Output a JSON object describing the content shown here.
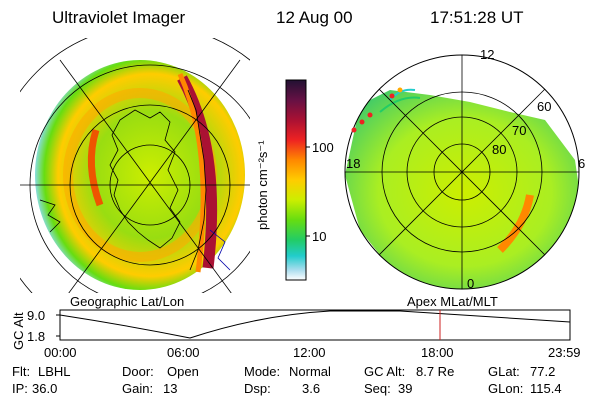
{
  "header": {
    "instrument": "Ultraviolet Imager",
    "date": "12 Aug 00",
    "time": "17:51:28 UT"
  },
  "left_panel": {
    "caption": "Geographic Lat/Lon"
  },
  "right_panel": {
    "caption": "Apex MLat/MLT",
    "lat_labels": [
      "60",
      "70",
      "80"
    ],
    "mlt_labels": {
      "top": "12",
      "left": "18",
      "right": "6",
      "bottom": "0"
    }
  },
  "colorbar": {
    "label": "photon cm⁻²s⁻¹",
    "ticks": [
      "100",
      "10"
    ],
    "colors": [
      "#221133",
      "#661144",
      "#aa1133",
      "#ee2222",
      "#ff8800",
      "#ffcc00",
      "#ccee00",
      "#66dd11",
      "#22cc66",
      "#22cccc",
      "#aaddee",
      "#ffffff"
    ]
  },
  "timeline": {
    "ylabel": "GC Alt",
    "y_ticks": [
      "9.0",
      "1.8"
    ],
    "x_ticks": [
      "00:00",
      "06:00",
      "12:00",
      "18:00",
      "23:59"
    ],
    "marker_color": "#cc2222"
  },
  "info": {
    "flt_label": "Flt:",
    "flt_value": "LBHL",
    "ip_label": "IP:",
    "ip_value": "36.0",
    "door_label": "Door:",
    "door_value": "Open",
    "gain_label": "Gain:",
    "gain_value": "13",
    "mode_label": "Mode:",
    "mode_value": "Normal",
    "dsp_label": "Dsp:",
    "dsp_value": "3.6",
    "gcalt_label": "GC Alt:",
    "gcalt_value": "8.7 Re",
    "seq_label": "Seq:",
    "seq_value": "39",
    "glat_label": "GLat:",
    "glat_value": "77.2",
    "glon_label": "GLon:",
    "glon_value": "115.4"
  }
}
